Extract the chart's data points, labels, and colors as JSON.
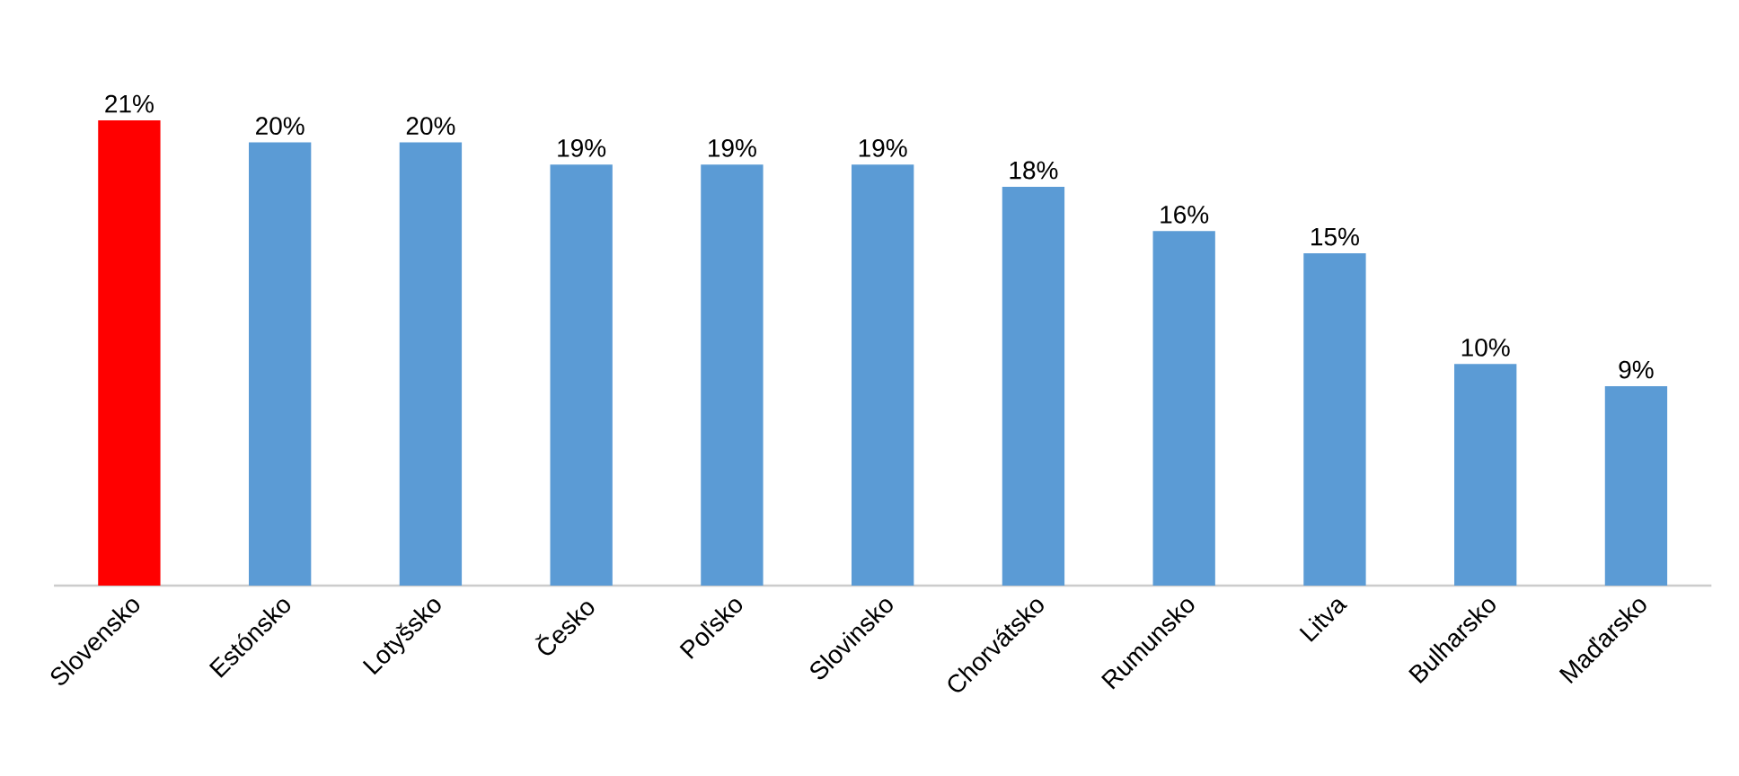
{
  "chart_data": {
    "type": "bar",
    "categories": [
      "Slovensko",
      "Estónsko",
      "Lotyšsko",
      "Česko",
      "Poľsko",
      "Slovinsko",
      "Chorvátsko",
      "Rumunsko",
      "Litva",
      "Bulharsko",
      "Maďarsko"
    ],
    "values": [
      21,
      20,
      20,
      19,
      19,
      19,
      18,
      16,
      15,
      10,
      9
    ],
    "value_labels": [
      "21%",
      "20%",
      "20%",
      "19%",
      "19%",
      "19%",
      "18%",
      "16%",
      "15%",
      "10%",
      "9%"
    ],
    "colors": [
      "#ff0000",
      "#5b9bd5",
      "#5b9bd5",
      "#5b9bd5",
      "#5b9bd5",
      "#5b9bd5",
      "#5b9bd5",
      "#5b9bd5",
      "#5b9bd5",
      "#5b9bd5",
      "#5b9bd5"
    ]
  }
}
